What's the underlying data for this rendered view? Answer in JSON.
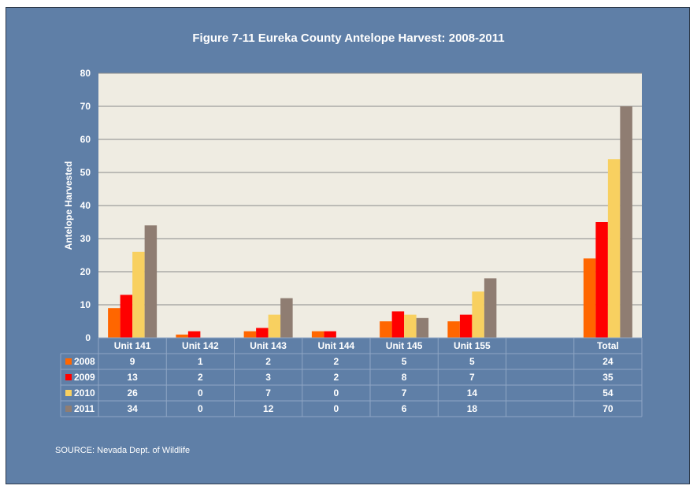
{
  "source_note": "SOURCE: Nevada Dept. of Wildlife",
  "chart_data": {
    "type": "bar",
    "title": "Figure 7-11 Eureka County Antelope Harvest: 2008-2011",
    "xlabel": "",
    "ylabel": "Antelope Harvested",
    "ylim": [
      0,
      80
    ],
    "yticks": [
      0,
      10,
      20,
      30,
      40,
      50,
      60,
      70,
      80
    ],
    "grid": true,
    "legend": "data-table-left",
    "categories": [
      "Unit 141",
      "Unit 142",
      "Unit 143",
      "Unit 144",
      "Unit 145",
      "Unit 155",
      "",
      "Total"
    ],
    "series": [
      {
        "name": "2008",
        "color": "#ff6600",
        "values": [
          9,
          1,
          2,
          2,
          5,
          5,
          null,
          24
        ]
      },
      {
        "name": "2009",
        "color": "#ff0000",
        "values": [
          13,
          2,
          3,
          2,
          8,
          7,
          null,
          35
        ]
      },
      {
        "name": "2010",
        "color": "#f8d060",
        "values": [
          26,
          0,
          7,
          0,
          7,
          14,
          null,
          54
        ]
      },
      {
        "name": "2011",
        "color": "#8f7d72",
        "values": [
          34,
          0,
          12,
          0,
          6,
          18,
          null,
          70
        ]
      }
    ],
    "colors": {
      "plot_background": "#efece2",
      "frame": "#5f7fa7",
      "gridline": "#8a8a8a"
    }
  }
}
